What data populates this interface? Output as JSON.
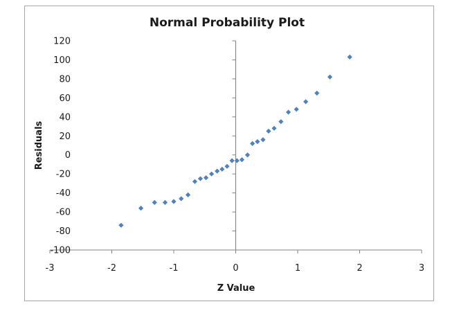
{
  "chart_data": {
    "type": "scatter",
    "title": "Normal Probability Plot",
    "xlabel": "Z Value",
    "ylabel": "Residuals",
    "xlim": [
      -3,
      3
    ],
    "ylim": [
      -100,
      120
    ],
    "xticks": [
      "-3",
      "-2",
      "-1",
      "0",
      "1",
      "2",
      "3"
    ],
    "yticks": [
      "-100",
      "-80",
      "-60",
      "-40",
      "-20",
      "0",
      "20",
      "40",
      "60",
      "80",
      "100",
      "120"
    ],
    "grid": false,
    "legend": "none",
    "marker_color": "#4f81bd",
    "series": [
      {
        "points": [
          [
            -1.85,
            -74
          ],
          [
            -1.53,
            -56
          ],
          [
            -1.31,
            -50
          ],
          [
            -1.14,
            -50
          ],
          [
            -1.0,
            -49
          ],
          [
            -0.88,
            -46
          ],
          [
            -0.77,
            -42
          ],
          [
            -0.66,
            -28
          ],
          [
            -0.57,
            -25
          ],
          [
            -0.48,
            -24
          ],
          [
            -0.39,
            -20
          ],
          [
            -0.3,
            -17
          ],
          [
            -0.22,
            -15
          ],
          [
            -0.14,
            -12
          ],
          [
            -0.06,
            -6
          ],
          [
            0.02,
            -6
          ],
          [
            0.1,
            -5
          ],
          [
            0.19,
            0
          ],
          [
            0.27,
            12
          ],
          [
            0.35,
            14
          ],
          [
            0.44,
            16
          ],
          [
            0.53,
            25
          ],
          [
            0.62,
            28
          ],
          [
            0.73,
            35
          ],
          [
            0.85,
            45
          ],
          [
            0.98,
            48
          ],
          [
            1.13,
            56
          ],
          [
            1.31,
            65
          ],
          [
            1.52,
            82
          ],
          [
            1.84,
            103
          ]
        ]
      }
    ]
  }
}
